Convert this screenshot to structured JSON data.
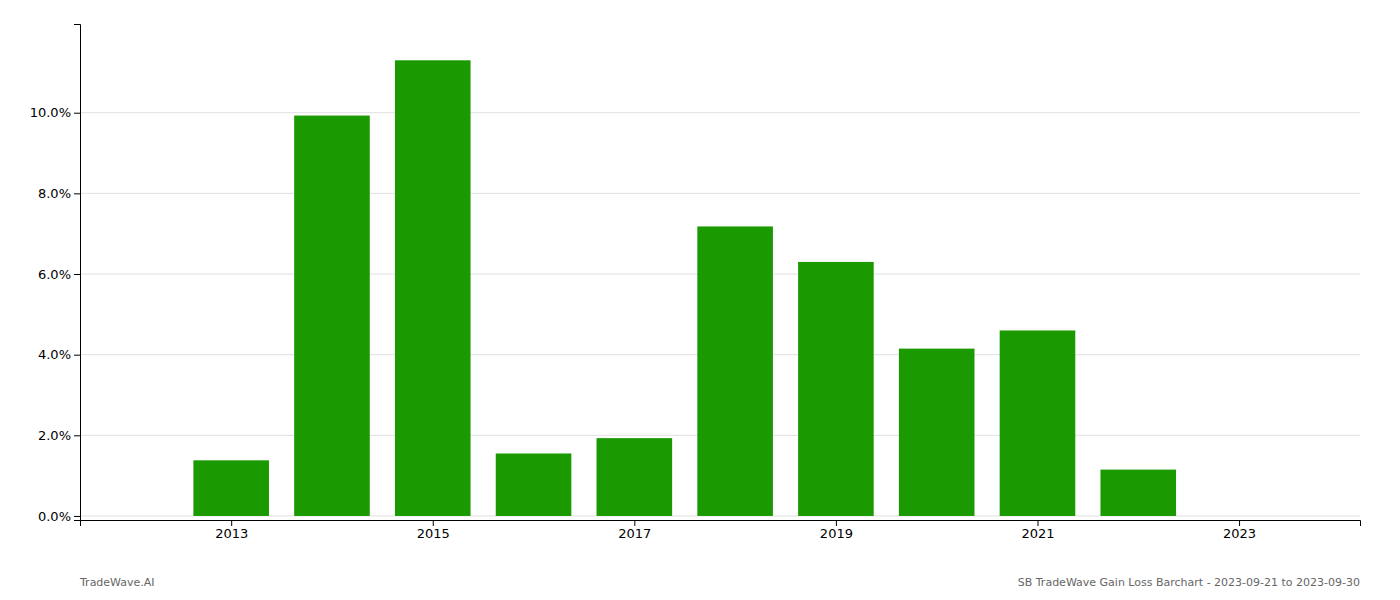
{
  "chart_data": {
    "type": "bar",
    "x": [
      2013,
      2014,
      2015,
      2016,
      2017,
      2018,
      2019,
      2020,
      2021,
      2022
    ],
    "values": [
      0.0138,
      0.0993,
      0.113,
      0.0155,
      0.0193,
      0.0718,
      0.063,
      0.0415,
      0.046,
      0.0115
    ],
    "color": "#1a9a00",
    "xlim": [
      2011.5,
      2024.2
    ],
    "xticks": [
      2013,
      2015,
      2017,
      2019,
      2021,
      2023
    ],
    "ylim": [
      -0.001,
      0.122
    ],
    "yticks": [
      {
        "value": 0.0,
        "label": "0.0%"
      },
      {
        "value": 0.02,
        "label": "2.0%"
      },
      {
        "value": 0.04,
        "label": "4.0%"
      },
      {
        "value": 0.06,
        "label": "6.0%"
      },
      {
        "value": 0.08,
        "label": "8.0%"
      },
      {
        "value": 0.1,
        "label": "10.0%"
      }
    ],
    "grid": true,
    "annotations": [
      "TradeWave.AI",
      "SB TradeWave Gain Loss Barchart - 2023-09-21 to 2023-09-30"
    ]
  }
}
